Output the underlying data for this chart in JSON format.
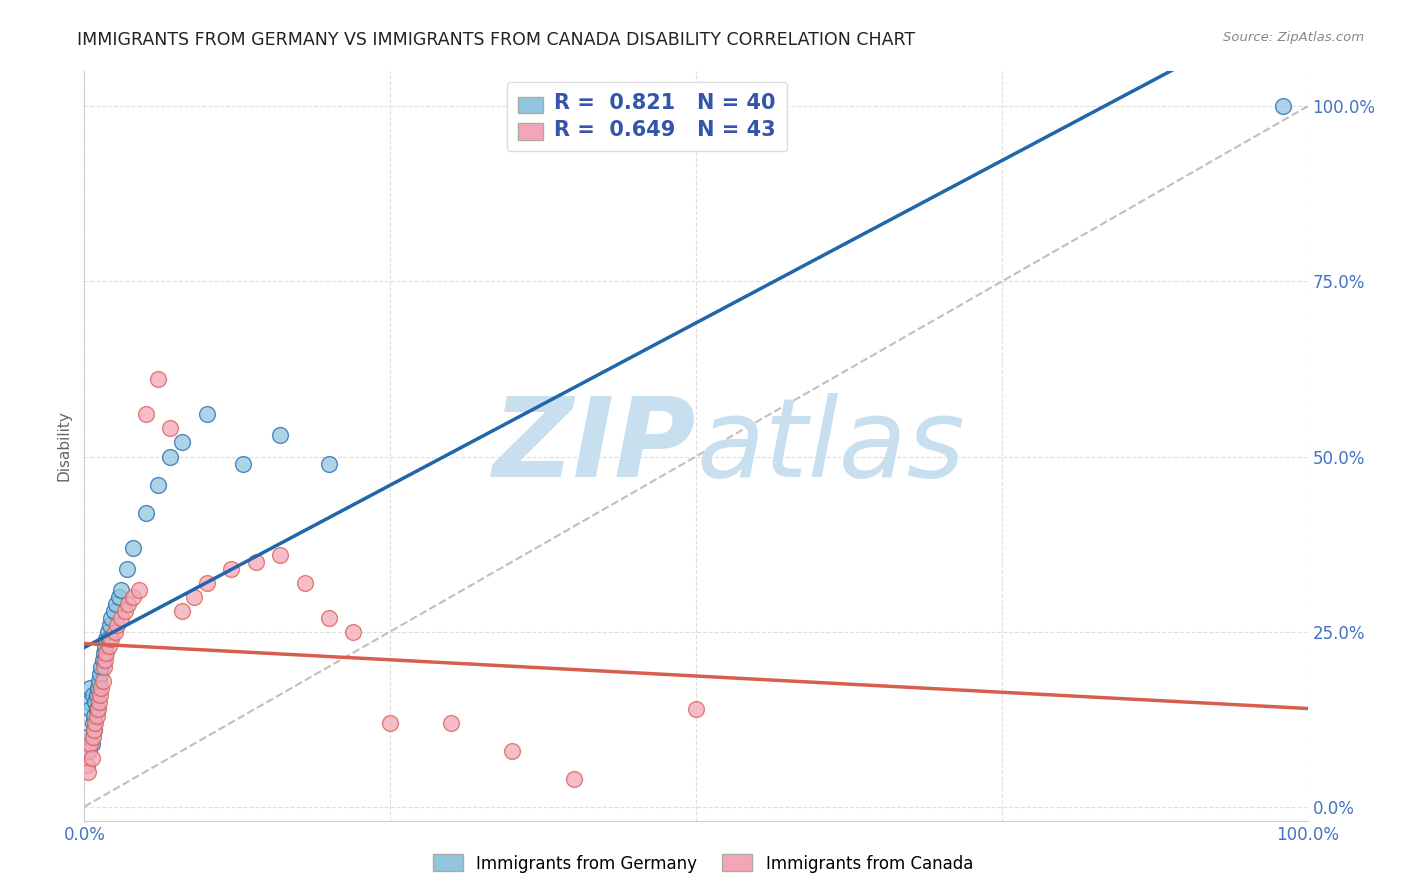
{
  "title": "IMMIGRANTS FROM GERMANY VS IMMIGRANTS FROM CANADA DISABILITY CORRELATION CHART",
  "source": "Source: ZipAtlas.com",
  "ylabel": "Disability",
  "xlim": [
    0,
    1
  ],
  "ylim": [
    -0.02,
    1.05
  ],
  "xticks": [
    0.0,
    0.25,
    0.5,
    0.75,
    1.0
  ],
  "yticks": [
    0.0,
    0.25,
    0.5,
    0.75,
    1.0
  ],
  "xtick_labels": [
    "0.0%",
    "",
    "50.0%",
    "",
    "100.0%"
  ],
  "ytick_labels_right": [
    "0.0%",
    "25.0%",
    "50.0%",
    "75.0%",
    "100.0%"
  ],
  "legend_label1": "Immigrants from Germany",
  "legend_label2": "Immigrants from Canada",
  "color_blue": "#92c5de",
  "color_pink": "#f4a6b8",
  "color_blue_line": "#2166ac",
  "color_pink_line": "#d6604d",
  "color_diag": "#b0b0b0",
  "background": "#ffffff",
  "watermark": "ZIPatlas",
  "watermark_color": "#c8dff0",
  "R1": 0.821,
  "N1": 40,
  "R2": 0.649,
  "N2": 43,
  "germany_x": [
    0.002,
    0.003,
    0.004,
    0.005,
    0.005,
    0.006,
    0.007,
    0.007,
    0.008,
    0.008,
    0.009,
    0.01,
    0.01,
    0.011,
    0.012,
    0.013,
    0.014,
    0.015,
    0.016,
    0.017,
    0.018,
    0.019,
    0.02,
    0.021,
    0.022,
    0.024,
    0.026,
    0.028,
    0.03,
    0.035,
    0.04,
    0.05,
    0.06,
    0.07,
    0.08,
    0.1,
    0.13,
    0.16,
    0.2,
    0.98
  ],
  "germany_y": [
    0.1,
    0.08,
    0.15,
    0.14,
    0.17,
    0.09,
    0.12,
    0.16,
    0.11,
    0.13,
    0.15,
    0.14,
    0.16,
    0.17,
    0.18,
    0.19,
    0.2,
    0.21,
    0.22,
    0.23,
    0.24,
    0.25,
    0.24,
    0.26,
    0.27,
    0.28,
    0.29,
    0.3,
    0.31,
    0.34,
    0.37,
    0.42,
    0.46,
    0.5,
    0.52,
    0.56,
    0.49,
    0.53,
    0.49,
    1.0
  ],
  "canada_x": [
    0.002,
    0.003,
    0.004,
    0.005,
    0.006,
    0.007,
    0.008,
    0.009,
    0.01,
    0.011,
    0.012,
    0.013,
    0.014,
    0.015,
    0.016,
    0.017,
    0.018,
    0.02,
    0.022,
    0.025,
    0.027,
    0.03,
    0.033,
    0.036,
    0.04,
    0.045,
    0.05,
    0.06,
    0.07,
    0.08,
    0.09,
    0.1,
    0.12,
    0.14,
    0.16,
    0.18,
    0.2,
    0.22,
    0.25,
    0.3,
    0.35,
    0.4,
    0.5
  ],
  "canada_y": [
    0.06,
    0.05,
    0.08,
    0.09,
    0.07,
    0.1,
    0.11,
    0.12,
    0.13,
    0.14,
    0.15,
    0.16,
    0.17,
    0.18,
    0.2,
    0.21,
    0.22,
    0.23,
    0.24,
    0.25,
    0.26,
    0.27,
    0.28,
    0.29,
    0.3,
    0.31,
    0.56,
    0.61,
    0.54,
    0.28,
    0.3,
    0.32,
    0.34,
    0.35,
    0.36,
    0.32,
    0.27,
    0.25,
    0.12,
    0.12,
    0.08,
    0.04,
    0.14
  ]
}
